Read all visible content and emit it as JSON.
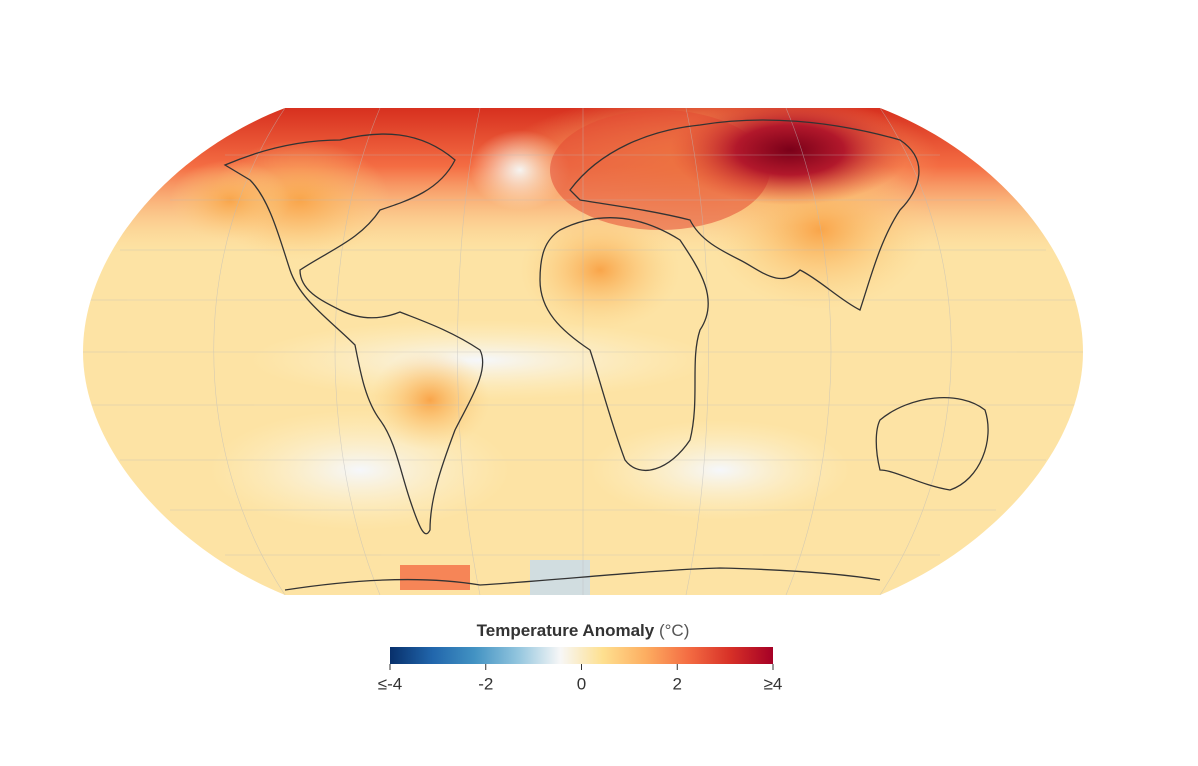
{
  "legend": {
    "title": "Temperature Anomaly",
    "unit": "(°C)",
    "range": [
      -4,
      4
    ],
    "ticks": [
      {
        "value": -4,
        "label": "≤-4"
      },
      -2,
      0,
      2,
      {
        "value": 4,
        "label": "≥4"
      }
    ],
    "colors": [
      "#08306b",
      "#2166ac",
      "#4393c3",
      "#92c5de",
      "#f7f7f7",
      "#fee090",
      "#fdae61",
      "#f46d43",
      "#d73027",
      "#a50026"
    ]
  }
}
